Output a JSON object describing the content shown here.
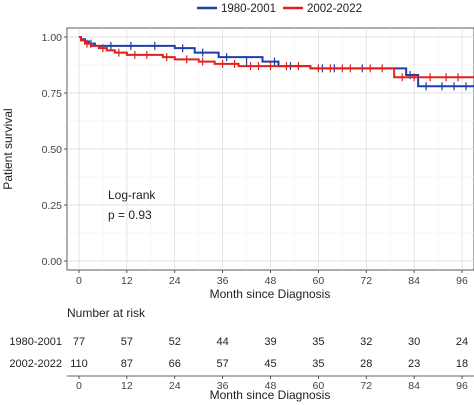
{
  "chart_data": {
    "type": "line",
    "subtype": "kaplan-meier step curve",
    "title": "",
    "xlabel": "Month since Diagnosis",
    "ylabel": "Patient survival",
    "xlim": [
      -3,
      99
    ],
    "ylim": [
      -0.04,
      1.04
    ],
    "x_ticks": [
      0,
      12,
      24,
      36,
      48,
      60,
      72,
      84,
      96
    ],
    "y_ticks": [
      0.0,
      0.25,
      0.5,
      0.75,
      1.0
    ],
    "y_tick_labels": [
      "0.00",
      "0.25",
      "0.50",
      "0.75",
      "1.00"
    ],
    "grid": true,
    "legend_position": "top",
    "legend": [
      "1980-2001",
      "2002-2022"
    ],
    "series": [
      {
        "name": "1980-2001",
        "color": "#1f3ea8",
        "steps": [
          [
            0,
            1.0
          ],
          [
            0.5,
            0.99
          ],
          [
            1.5,
            0.98
          ],
          [
            2.5,
            0.97
          ],
          [
            4,
            0.96
          ],
          [
            24,
            0.95
          ],
          [
            29,
            0.93
          ],
          [
            35,
            0.91
          ],
          [
            46,
            0.89
          ],
          [
            50,
            0.87
          ],
          [
            58,
            0.86
          ],
          [
            82,
            0.83
          ],
          [
            85,
            0.78
          ],
          [
            100,
            0.78
          ]
        ],
        "censor": [
          [
            3,
            0.97
          ],
          [
            8,
            0.96
          ],
          [
            13,
            0.96
          ],
          [
            19,
            0.96
          ],
          [
            26,
            0.95
          ],
          [
            31,
            0.93
          ],
          [
            37,
            0.91
          ],
          [
            42,
            0.89
          ],
          [
            49,
            0.89
          ],
          [
            53,
            0.87
          ],
          [
            61,
            0.86
          ],
          [
            64,
            0.86
          ],
          [
            71,
            0.86
          ],
          [
            83,
            0.83
          ],
          [
            87,
            0.78
          ],
          [
            91,
            0.78
          ],
          [
            94,
            0.78
          ],
          [
            97,
            0.78
          ]
        ]
      },
      {
        "name": "2002-2022",
        "color": "#e0211d",
        "steps": [
          [
            0,
            1.0
          ],
          [
            0.5,
            0.985
          ],
          [
            1.5,
            0.97
          ],
          [
            3,
            0.96
          ],
          [
            5,
            0.95
          ],
          [
            7,
            0.94
          ],
          [
            9,
            0.93
          ],
          [
            12,
            0.92
          ],
          [
            21,
            0.91
          ],
          [
            24,
            0.9
          ],
          [
            30,
            0.89
          ],
          [
            34,
            0.88
          ],
          [
            40,
            0.87
          ],
          [
            58,
            0.86
          ],
          [
            79,
            0.82
          ],
          [
            100,
            0.82
          ]
        ],
        "censor": [
          [
            2,
            0.97
          ],
          [
            6,
            0.95
          ],
          [
            10,
            0.93
          ],
          [
            14,
            0.92
          ],
          [
            17,
            0.92
          ],
          [
            22,
            0.91
          ],
          [
            27,
            0.9
          ],
          [
            31,
            0.89
          ],
          [
            36,
            0.88
          ],
          [
            39,
            0.88
          ],
          [
            43,
            0.87
          ],
          [
            45,
            0.87
          ],
          [
            48,
            0.87
          ],
          [
            52,
            0.87
          ],
          [
            55,
            0.87
          ],
          [
            60,
            0.86
          ],
          [
            63,
            0.86
          ],
          [
            66,
            0.86
          ],
          [
            68,
            0.86
          ],
          [
            73,
            0.86
          ],
          [
            76,
            0.86
          ],
          [
            81,
            0.82
          ],
          [
            84,
            0.82
          ],
          [
            88,
            0.82
          ],
          [
            92,
            0.82
          ],
          [
            95,
            0.82
          ]
        ]
      }
    ],
    "annotations": [
      "Log-rank",
      "p = 0.93"
    ],
    "risk_table": {
      "title": "Number at risk",
      "xlabel": "Month since Diagnosis",
      "times": [
        0,
        12,
        24,
        36,
        48,
        60,
        72,
        84,
        96
      ],
      "rows": [
        {
          "name": "1980-2001",
          "values": [
            77,
            57,
            52,
            44,
            39,
            35,
            32,
            30,
            24
          ]
        },
        {
          "name": "2002-2022",
          "values": [
            110,
            87,
            66,
            57,
            45,
            35,
            28,
            23,
            18
          ]
        }
      ]
    }
  }
}
